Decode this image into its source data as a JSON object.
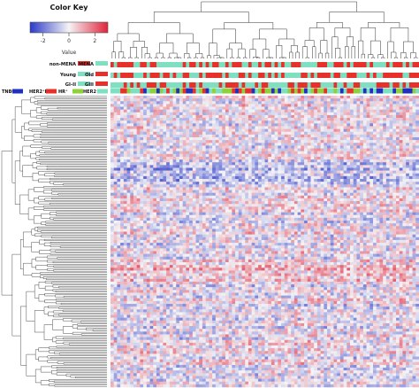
{
  "chart_data": {
    "type": "heatmap",
    "title": "",
    "color_key": {
      "title": "Color Key",
      "axis_label": "Value",
      "ticks": [
        -2,
        0,
        2
      ],
      "range": [
        -3,
        3
      ],
      "low_color": "#2b39c8",
      "mid_color": "#f4f4f6",
      "high_color": "#e0233a"
    },
    "annotation_tracks": [
      {
        "name": "mena",
        "labels": [
          "non-MENA",
          "MENA"
        ],
        "colors": [
          "#e8302a",
          "#7ee0c0"
        ]
      },
      {
        "name": "age",
        "labels": [
          "Young",
          "Old"
        ],
        "colors": [
          "#7ee0c0",
          "#e8302a"
        ]
      },
      {
        "name": "grade",
        "labels": [
          "GI-II",
          "GIII"
        ],
        "colors": [
          "#7ee0c0",
          "#e8302a"
        ]
      },
      {
        "name": "subtype",
        "labels": [
          "TNBC",
          "HER2⁺HR⁺",
          "HR⁺",
          "HER2⁺"
        ],
        "colors": [
          "#1f2fbf",
          "#e8302a",
          "#8fd13a",
          "#7ee0c0"
        ]
      }
    ],
    "n_samples": 94,
    "n_genes": 210,
    "x_dendrogram": true,
    "y_dendrogram": true
  }
}
